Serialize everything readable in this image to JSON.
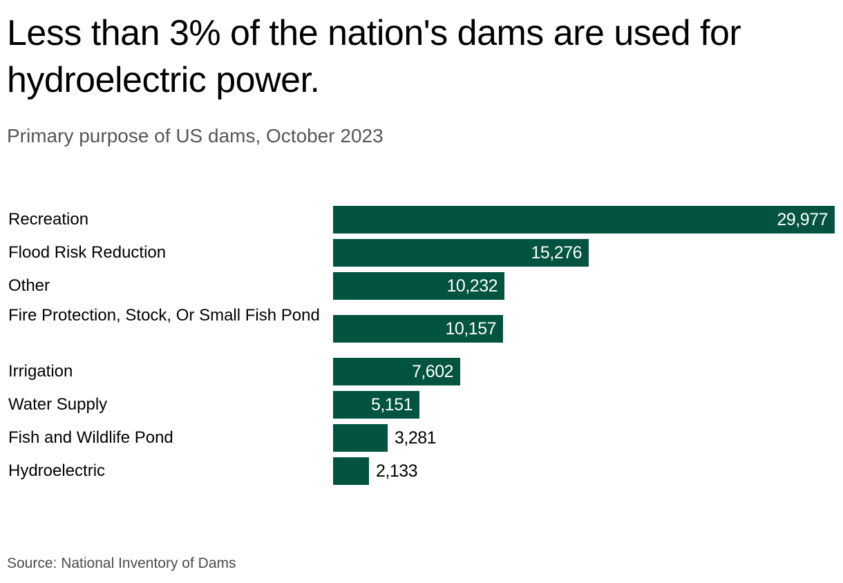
{
  "header": {
    "title": "Less than 3% of the nation's dams are used for hydroelectric power.",
    "subtitle": "Primary purpose of US dams, October 2023"
  },
  "footer": {
    "source": "Source: National Inventory of Dams"
  },
  "colors": {
    "bar": "#02533f",
    "title": "#000000",
    "subtitle": "#555555",
    "source": "#4a4a4a"
  },
  "chart_data": {
    "type": "bar",
    "orientation": "horizontal",
    "title": "Less than 3% of the nation's dams are used for hydroelectric power.",
    "subtitle": "Primary purpose of US dams, October 2023",
    "xlabel": "",
    "ylabel": "",
    "grid": false,
    "legend": null,
    "source": "Source: National Inventory of Dams",
    "categories": [
      "Recreation",
      "Flood Risk Reduction",
      "Other",
      "Fire Protection, Stock, Or Small Fish Pond",
      "Irrigation",
      "Water Supply",
      "Fish and Wildlife Pond",
      "Hydroelectric"
    ],
    "values": [
      29977,
      15276,
      10232,
      10157,
      7602,
      5151,
      3281,
      2133
    ],
    "value_labels": [
      "29,977",
      "15,276",
      "10,232",
      "10,157",
      "7,602",
      "5,151",
      "3,281",
      "2,133"
    ],
    "xlim": [
      0,
      29977
    ]
  },
  "rows": [
    {
      "label": "Recreation",
      "value_label": "29,977"
    },
    {
      "label": "Flood Risk Reduction",
      "value_label": "15,276"
    },
    {
      "label": "Other",
      "value_label": "10,232"
    },
    {
      "label": "Fire Protection, Stock, Or Small Fish Pond",
      "value_label": "10,157"
    },
    {
      "label": "Irrigation",
      "value_label": "7,602"
    },
    {
      "label": "Water Supply",
      "value_label": "5,151"
    },
    {
      "label": "Fish and Wildlife Pond",
      "value_label": "3,281"
    },
    {
      "label": "Hydroelectric",
      "value_label": "2,133"
    }
  ]
}
